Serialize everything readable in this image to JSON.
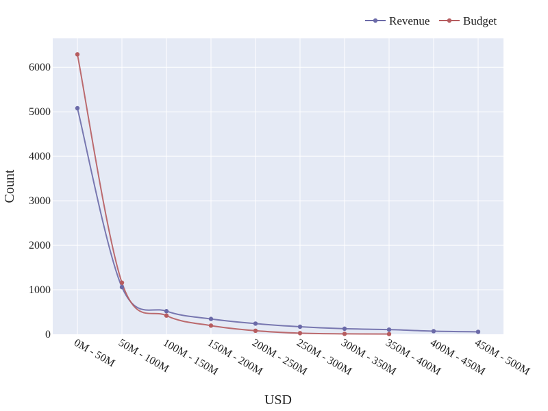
{
  "chart_data": {
    "type": "line",
    "categories": [
      "0M - 50M",
      "50M - 100M",
      "100M - 150M",
      "150M - 200M",
      "200M - 250M",
      "250M - 300M",
      "300M - 350M",
      "350M - 400M",
      "400M - 450M",
      "450M - 500M"
    ],
    "series": [
      {
        "name": "Revenue",
        "color": "#6b6aa8",
        "values": [
          5080,
          1060,
          520,
          345,
          240,
          170,
          125,
          105,
          70,
          55
        ]
      },
      {
        "name": "Budget",
        "color": "#b65c5f",
        "values": [
          6290,
          1160,
          420,
          195,
          80,
          25,
          10,
          5,
          null,
          null
        ]
      }
    ],
    "xlabel": "USD",
    "ylabel": "Count",
    "ylim": [
      0,
      6650
    ],
    "yticks": [
      0,
      1000,
      2000,
      3000,
      4000,
      5000,
      6000
    ],
    "grid": true,
    "legend_position": "top-right",
    "plot_background": "#e5eaf5"
  }
}
